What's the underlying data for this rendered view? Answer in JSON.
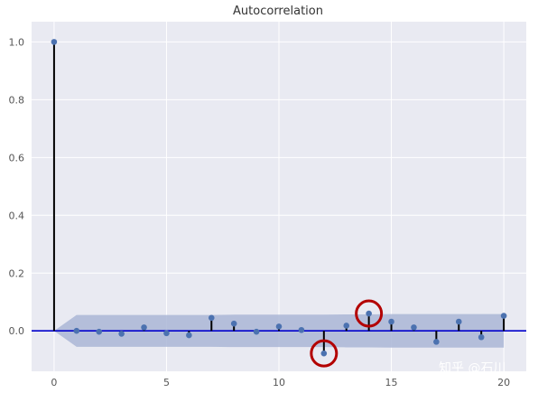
{
  "chart_data": {
    "type": "stem",
    "title": "Autocorrelation",
    "xlabel": "",
    "ylabel": "",
    "xlim": [
      -1,
      21
    ],
    "ylim": [
      -0.14,
      1.07
    ],
    "x_ticks": [
      "0",
      "5",
      "10",
      "15",
      "20"
    ],
    "x_tick_values": [
      0,
      5,
      10,
      15,
      20
    ],
    "y_ticks": [
      "0.0",
      "0.2",
      "0.4",
      "0.6",
      "0.8",
      "1.0"
    ],
    "y_tick_values": [
      0.0,
      0.2,
      0.4,
      0.6,
      0.8,
      1.0
    ],
    "grid": true,
    "lags": [
      0,
      1,
      2,
      3,
      4,
      5,
      6,
      7,
      8,
      9,
      10,
      11,
      12,
      13,
      14,
      15,
      16,
      17,
      18,
      19,
      20
    ],
    "values": [
      1.0,
      0.0,
      -0.003,
      -0.01,
      0.012,
      -0.008,
      -0.015,
      0.045,
      0.025,
      -0.003,
      0.015,
      0.003,
      -0.078,
      0.018,
      0.06,
      0.032,
      0.012,
      -0.038,
      0.032,
      -0.022,
      0.052
    ],
    "confidence_band": [
      0.0,
      0.055,
      0.055,
      0.055,
      0.055,
      0.055,
      0.055,
      0.055,
      0.056,
      0.056,
      0.056,
      0.056,
      0.056,
      0.057,
      0.057,
      0.058,
      0.058,
      0.058,
      0.058,
      0.058,
      0.058
    ],
    "highlighted_lags": [
      12,
      14
    ],
    "colors": {
      "background": "#e9eaf2",
      "grid": "#ffffff",
      "stem": "#000000",
      "marker": "#4c72b0",
      "zero_line": "#0000cc",
      "band": "#aab6d6",
      "highlight": "#b30000"
    }
  },
  "watermark": "知乎 @石川"
}
